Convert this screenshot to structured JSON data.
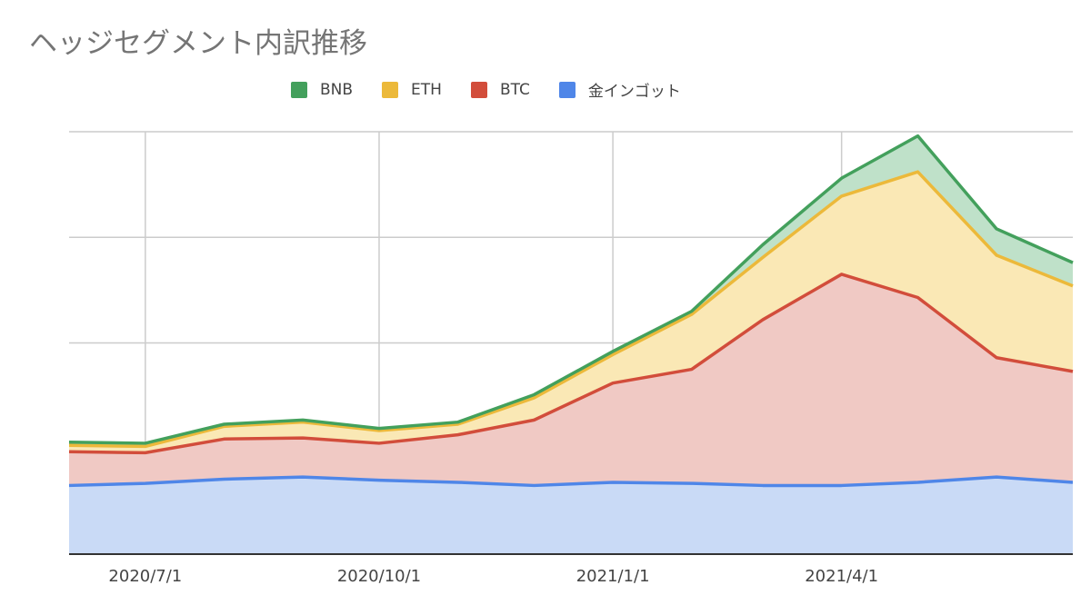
{
  "chart_data": {
    "type": "area",
    "stacked": true,
    "title": "ヘッジセグメント内訳推移",
    "xlabel": "",
    "ylabel": "",
    "x": [
      "2020-06-01",
      "2020-07-01",
      "2020-08-01",
      "2020-09-01",
      "2020-10-01",
      "2020-11-01",
      "2020-12-01",
      "2021-01-01",
      "2021-02-01",
      "2021-03-01",
      "2021-04-01",
      "2021-05-01",
      "2021-06-01",
      "2021-07-01"
    ],
    "x_ticks": [
      {
        "date": "2020-07-01",
        "label": "2020/7/1"
      },
      {
        "date": "2020-10-01",
        "label": "2020/10/1"
      },
      {
        "date": "2021-01-01",
        "label": "2021/1/1"
      },
      {
        "date": "2021-04-01",
        "label": "2021/4/1"
      }
    ],
    "xlim": [
      "2020-06-01",
      "2021-07-01"
    ],
    "ylim": [
      0,
      400
    ],
    "y_gridlines": [
      0,
      100,
      200,
      300,
      400
    ],
    "y_tick_labels_shown": false,
    "grid": true,
    "legend_position": "top",
    "series": [
      {
        "name": "金インゴット",
        "color": "#4f86e8",
        "fill": "#c9daf6",
        "values": [
          65,
          67,
          71,
          73,
          70,
          68,
          65,
          68,
          67,
          65,
          65,
          68,
          73,
          68
        ]
      },
      {
        "name": "BTC",
        "color": "#d24d3b",
        "fill": "#f0c9c4",
        "values": [
          32,
          29,
          38,
          37,
          35,
          45,
          62,
          94,
          108,
          157,
          200,
          175,
          113,
          105
        ]
      },
      {
        "name": "ETH",
        "color": "#ecb93a",
        "fill": "#fae8b5",
        "values": [
          6,
          6,
          12,
          15,
          12,
          10,
          21,
          27,
          52,
          59,
          74,
          119,
          97,
          81
        ]
      },
      {
        "name": "BNB",
        "color": "#43a05c",
        "fill": "#bfe1c9",
        "values": [
          3,
          3,
          2,
          2,
          2,
          2,
          3,
          3,
          3,
          12,
          17,
          34,
          25,
          22
        ]
      }
    ],
    "legend_order": [
      "BNB",
      "ETH",
      "BTC",
      "金インゴット"
    ]
  }
}
